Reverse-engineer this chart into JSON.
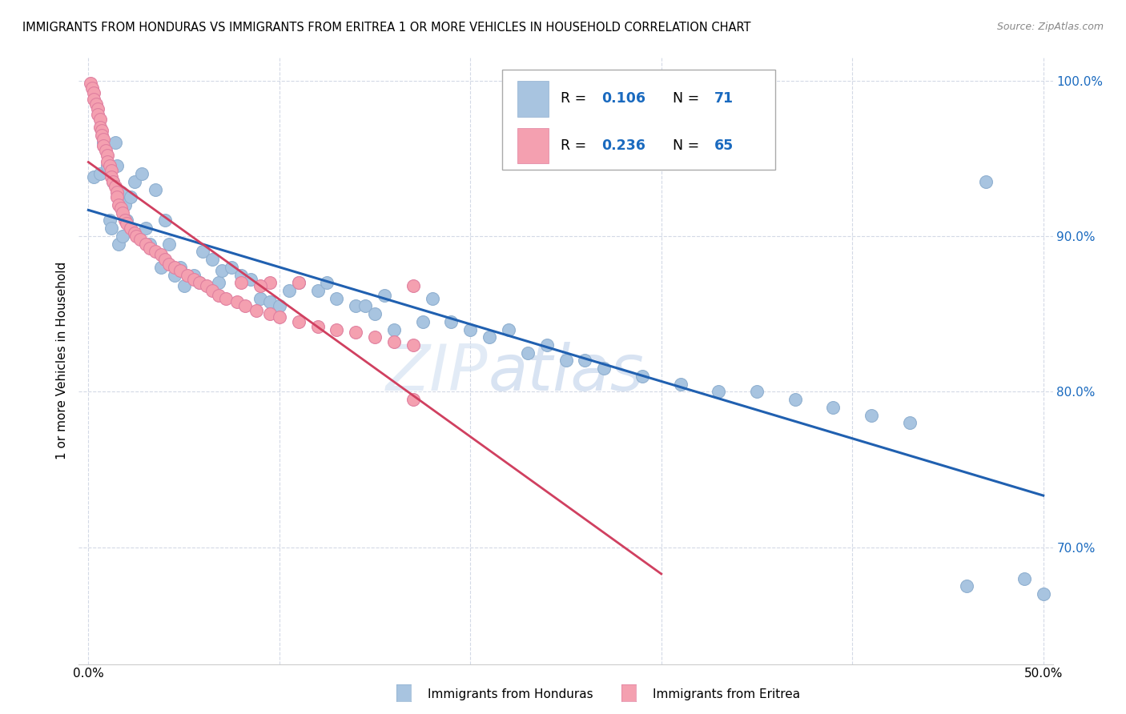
{
  "title": "IMMIGRANTS FROM HONDURAS VS IMMIGRANTS FROM ERITREA 1 OR MORE VEHICLES IN HOUSEHOLD CORRELATION CHART",
  "source": "Source: ZipAtlas.com",
  "ylabel": "1 or more Vehicles in Household",
  "ylim": [
    0.625,
    1.015
  ],
  "xlim": [
    -0.005,
    0.505
  ],
  "yticks": [
    0.7,
    0.8,
    0.9,
    1.0
  ],
  "ytick_labels": [
    "70.0%",
    "80.0%",
    "90.0%",
    "100.0%"
  ],
  "xticks": [
    0.0,
    0.1,
    0.2,
    0.3,
    0.4,
    0.5
  ],
  "xtick_labels": [
    "0.0%",
    "",
    "",
    "",
    "",
    "50.0%"
  ],
  "honduras_color": "#a8c4e0",
  "eritrea_color": "#f4a0b0",
  "honduras_R": 0.106,
  "honduras_N": 71,
  "eritrea_R": 0.236,
  "eritrea_N": 65,
  "line_honduras_color": "#2060b0",
  "line_eritrea_color": "#d04060",
  "legend_R_color": "#1a6abf",
  "watermark": "ZIPatlas",
  "honduras_x": [
    0.003,
    0.006,
    0.008,
    0.01,
    0.011,
    0.012,
    0.013,
    0.014,
    0.015,
    0.016,
    0.017,
    0.018,
    0.019,
    0.02,
    0.022,
    0.024,
    0.028,
    0.03,
    0.032,
    0.035,
    0.038,
    0.04,
    0.042,
    0.045,
    0.048,
    0.05,
    0.055,
    0.058,
    0.06,
    0.065,
    0.068,
    0.07,
    0.075,
    0.08,
    0.085,
    0.09,
    0.095,
    0.1,
    0.105,
    0.11,
    0.12,
    0.125,
    0.13,
    0.14,
    0.145,
    0.15,
    0.155,
    0.16,
    0.175,
    0.18,
    0.19,
    0.2,
    0.21,
    0.22,
    0.23,
    0.24,
    0.25,
    0.26,
    0.27,
    0.29,
    0.31,
    0.33,
    0.35,
    0.37,
    0.39,
    0.41,
    0.43,
    0.46,
    0.49,
    0.5,
    0.47
  ],
  "honduras_y": [
    0.938,
    0.94,
    0.96,
    0.945,
    0.91,
    0.905,
    0.935,
    0.96,
    0.945,
    0.895,
    0.928,
    0.9,
    0.92,
    0.91,
    0.925,
    0.935,
    0.94,
    0.905,
    0.895,
    0.93,
    0.88,
    0.91,
    0.895,
    0.875,
    0.88,
    0.868,
    0.875,
    0.87,
    0.89,
    0.885,
    0.87,
    0.878,
    0.88,
    0.875,
    0.872,
    0.86,
    0.858,
    0.855,
    0.865,
    0.87,
    0.865,
    0.87,
    0.86,
    0.855,
    0.855,
    0.85,
    0.862,
    0.84,
    0.845,
    0.86,
    0.845,
    0.84,
    0.835,
    0.84,
    0.825,
    0.83,
    0.82,
    0.82,
    0.815,
    0.81,
    0.805,
    0.8,
    0.8,
    0.795,
    0.79,
    0.785,
    0.78,
    0.675,
    0.68,
    0.67,
    0.935
  ],
  "eritrea_x": [
    0.001,
    0.002,
    0.003,
    0.003,
    0.004,
    0.005,
    0.005,
    0.006,
    0.006,
    0.007,
    0.007,
    0.008,
    0.008,
    0.009,
    0.01,
    0.01,
    0.011,
    0.012,
    0.012,
    0.013,
    0.014,
    0.015,
    0.015,
    0.016,
    0.017,
    0.018,
    0.019,
    0.02,
    0.022,
    0.024,
    0.025,
    0.027,
    0.03,
    0.032,
    0.035,
    0.038,
    0.04,
    0.042,
    0.045,
    0.048,
    0.052,
    0.055,
    0.058,
    0.062,
    0.065,
    0.068,
    0.072,
    0.078,
    0.082,
    0.088,
    0.095,
    0.1,
    0.11,
    0.12,
    0.13,
    0.14,
    0.15,
    0.16,
    0.17,
    0.17,
    0.095,
    0.11,
    0.08,
    0.09,
    0.17
  ],
  "eritrea_y": [
    0.998,
    0.995,
    0.992,
    0.988,
    0.985,
    0.982,
    0.978,
    0.975,
    0.97,
    0.968,
    0.965,
    0.962,
    0.958,
    0.955,
    0.952,
    0.948,
    0.945,
    0.942,
    0.938,
    0.935,
    0.932,
    0.928,
    0.925,
    0.92,
    0.918,
    0.915,
    0.91,
    0.908,
    0.905,
    0.902,
    0.9,
    0.898,
    0.895,
    0.892,
    0.89,
    0.888,
    0.885,
    0.882,
    0.88,
    0.878,
    0.875,
    0.872,
    0.87,
    0.868,
    0.865,
    0.862,
    0.86,
    0.858,
    0.855,
    0.852,
    0.85,
    0.848,
    0.845,
    0.842,
    0.84,
    0.838,
    0.835,
    0.832,
    0.83,
    0.868,
    0.87,
    0.87,
    0.87,
    0.868,
    0.795
  ]
}
